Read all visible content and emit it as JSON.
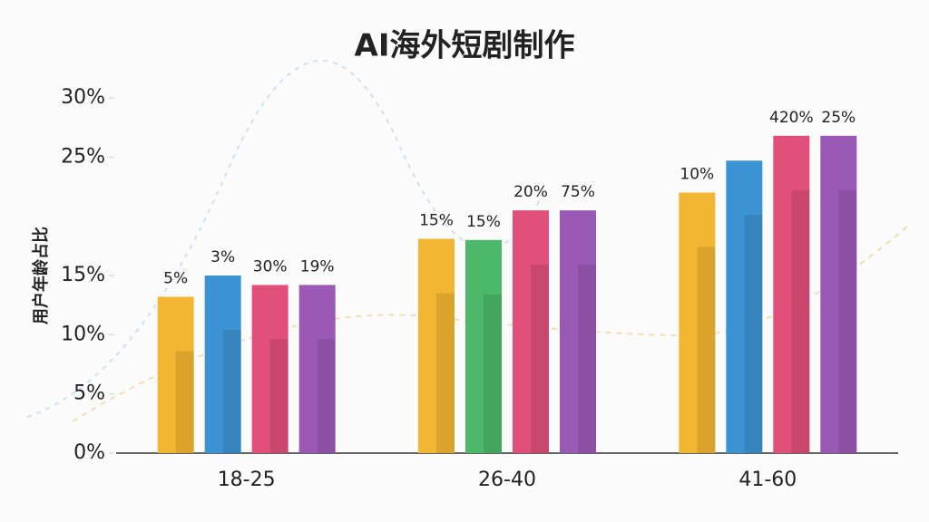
{
  "chart_data": {
    "type": "bar",
    "title": "AI海外短剧制作",
    "y_label": "用户年龄占比",
    "categories": [
      "18-25",
      "26-40",
      "41-60"
    ],
    "series": [
      {
        "color": "#f2b632",
        "values": [
          13.2,
          18.1,
          22.0
        ],
        "annotations": [
          "5%",
          "15%",
          "10%"
        ]
      },
      {
        "color": "#3b93d3",
        "colors": [
          "#3b93d3",
          "#4cb86a",
          "#3b93d3"
        ],
        "values": [
          15.0,
          18.0,
          24.7
        ],
        "annotations": [
          "3%",
          "15%",
          null
        ]
      },
      {
        "color": "#e0507a",
        "values": [
          14.2,
          20.5,
          26.8
        ],
        "annotations": [
          "30%",
          "20%",
          "420%"
        ]
      },
      {
        "color": "#9b59b6",
        "values": [
          14.2,
          20.5,
          26.8
        ],
        "annotations": [
          "19%",
          "75%",
          "25%"
        ]
      }
    ],
    "ylim": [
      0,
      30
    ],
    "yticks": [
      {
        "value": 0,
        "label": "0%"
      },
      {
        "value": 5,
        "label": "5%"
      },
      {
        "value": 10,
        "label": "10%"
      },
      {
        "value": 15,
        "label": "15%"
      },
      {
        "value": 25,
        "label": "25%"
      },
      {
        "value": 30,
        "label": "30%"
      }
    ]
  }
}
